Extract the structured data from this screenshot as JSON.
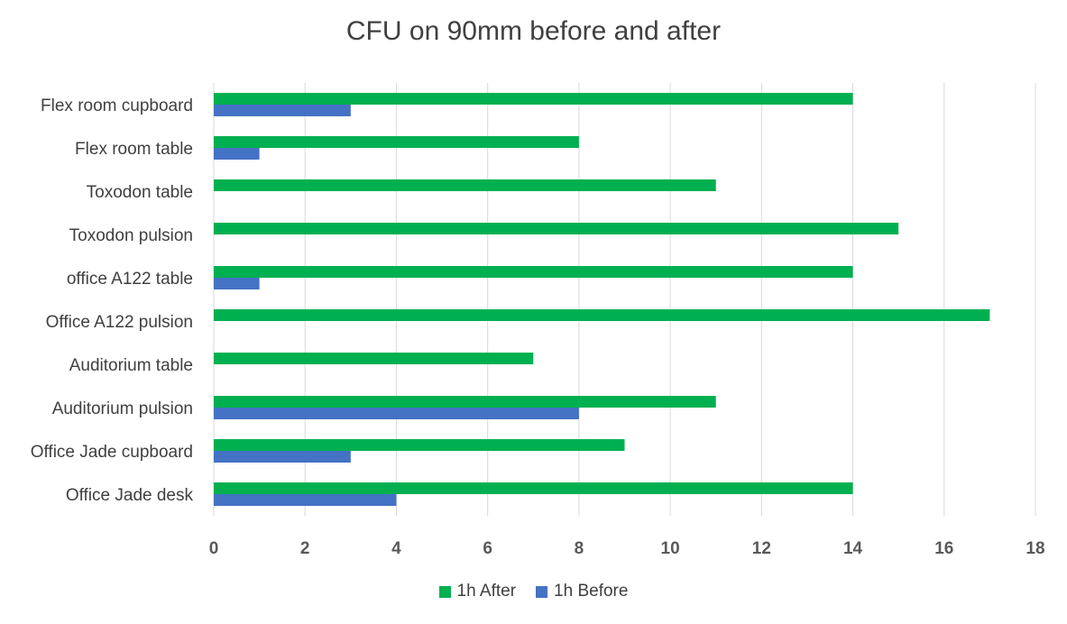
{
  "chart_data": {
    "type": "bar",
    "orientation": "horizontal",
    "title": "CFU on 90mm before and after",
    "categories": [
      "Flex room cupboard",
      "Flex room table",
      "Toxodon table",
      "Toxodon pulsion",
      "office A122 table",
      "Office A122 pulsion",
      "Auditorium table",
      "Auditorium pulsion",
      "Office Jade cupboard",
      "Office Jade desk"
    ],
    "series": [
      {
        "name": "1h After",
        "color": "#00b050",
        "values": [
          14,
          8,
          11,
          15,
          14,
          17,
          7,
          11,
          9,
          14
        ]
      },
      {
        "name": "1h Before",
        "color": "#4472c4",
        "values": [
          3,
          1,
          0,
          0,
          1,
          0,
          0,
          8,
          3,
          4
        ]
      }
    ],
    "xlim": [
      0,
      18
    ],
    "xticks": [
      0,
      2,
      4,
      6,
      8,
      10,
      12,
      14,
      16,
      18
    ],
    "xtick_labels": [
      "0",
      "2",
      "4",
      "6",
      "8",
      "10",
      "12",
      "14",
      "16",
      "18"
    ],
    "grid": true,
    "legend_position": "bottom"
  }
}
